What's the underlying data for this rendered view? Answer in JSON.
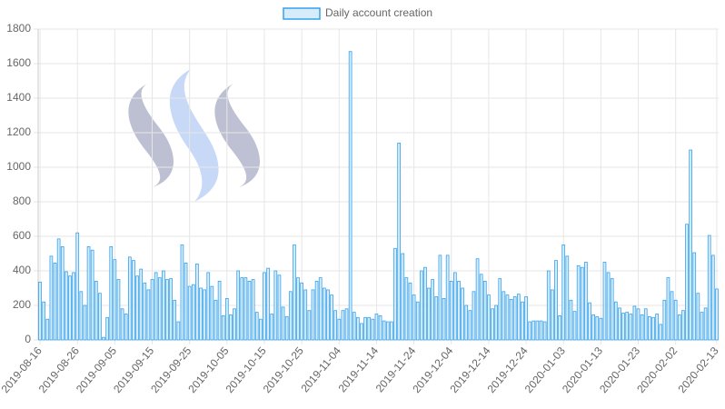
{
  "chart_data": {
    "type": "bar",
    "categories": [
      "2019-08-16",
      null,
      null,
      null,
      null,
      null,
      null,
      null,
      null,
      null,
      "2019-08-26",
      null,
      null,
      null,
      null,
      null,
      null,
      null,
      null,
      null,
      "2019-09-05",
      null,
      null,
      null,
      null,
      null,
      null,
      null,
      null,
      null,
      "2019-09-15",
      null,
      null,
      null,
      null,
      null,
      null,
      null,
      null,
      null,
      "2019-09-25",
      null,
      null,
      null,
      null,
      null,
      null,
      null,
      null,
      null,
      "2019-10-05",
      null,
      null,
      null,
      null,
      null,
      null,
      null,
      null,
      null,
      "2019-10-15",
      null,
      null,
      null,
      null,
      null,
      null,
      null,
      null,
      null,
      "2019-10-25",
      null,
      null,
      null,
      null,
      null,
      null,
      null,
      null,
      null,
      "2019-11-04",
      null,
      null,
      null,
      null,
      null,
      null,
      null,
      null,
      null,
      "2019-11-14",
      null,
      null,
      null,
      null,
      null,
      null,
      null,
      null,
      null,
      "2019-11-24",
      null,
      null,
      null,
      null,
      null,
      null,
      null,
      null,
      null,
      "2019-12-04",
      null,
      null,
      null,
      null,
      null,
      null,
      null,
      null,
      null,
      "2019-12-14",
      null,
      null,
      null,
      null,
      null,
      null,
      null,
      null,
      null,
      "2019-12-24",
      null,
      null,
      null,
      null,
      null,
      null,
      null,
      null,
      null,
      "2020-01-03",
      null,
      null,
      null,
      null,
      null,
      null,
      null,
      null,
      null,
      "2020-01-13",
      null,
      null,
      null,
      null,
      null,
      null,
      null,
      null,
      null,
      "2020-01-23",
      null,
      null,
      null,
      null,
      null,
      null,
      null,
      null,
      null,
      "2020-02-02",
      null,
      null,
      null,
      null,
      null,
      null,
      null,
      null,
      null,
      null,
      "2020-02-13"
    ],
    "series": [
      {
        "name": "Daily account creation",
        "color": "#36a2eb",
        "fill": "#d7ecfb",
        "values": [
          335,
          220,
          120,
          485,
          445,
          585,
          540,
          395,
          370,
          390,
          620,
          280,
          200,
          540,
          520,
          340,
          270,
          15,
          130,
          540,
          465,
          350,
          180,
          150,
          480,
          460,
          370,
          410,
          330,
          290,
          350,
          390,
          360,
          400,
          350,
          355,
          230,
          105,
          550,
          445,
          310,
          320,
          440,
          300,
          290,
          390,
          310,
          230,
          340,
          140,
          240,
          145,
          180,
          400,
          360,
          360,
          340,
          350,
          160,
          120,
          390,
          415,
          150,
          400,
          375,
          190,
          135,
          280,
          550,
          360,
          330,
          290,
          170,
          290,
          340,
          360,
          300,
          290,
          260,
          170,
          120,
          170,
          180,
          1670,
          160,
          130,
          95,
          130,
          130,
          120,
          150,
          140,
          110,
          105,
          105,
          530,
          1140,
          500,
          360,
          330,
          260,
          220,
          400,
          420,
          300,
          350,
          250,
          490,
          240,
          490,
          340,
          390,
          340,
          300,
          200,
          170,
          280,
          470,
          380,
          340,
          260,
          180,
          200,
          355,
          280,
          260,
          235,
          250,
          265,
          220,
          250,
          105,
          110,
          110,
          110,
          105,
          400,
          290,
          460,
          140,
          550,
          485,
          230,
          165,
          430,
          420,
          450,
          215,
          145,
          135,
          125,
          450,
          390,
          355,
          220,
          185,
          155,
          160,
          150,
          195,
          180,
          145,
          180,
          135,
          130,
          150,
          90,
          230,
          360,
          280,
          230,
          145,
          170,
          670,
          1100,
          505,
          270,
          160,
          185,
          605,
          490,
          295
        ]
      }
    ],
    "ylim": [
      0,
      1800
    ],
    "yticks": [
      0,
      200,
      400,
      600,
      800,
      1000,
      1200,
      1400,
      1600,
      1800
    ],
    "grid": true
  }
}
